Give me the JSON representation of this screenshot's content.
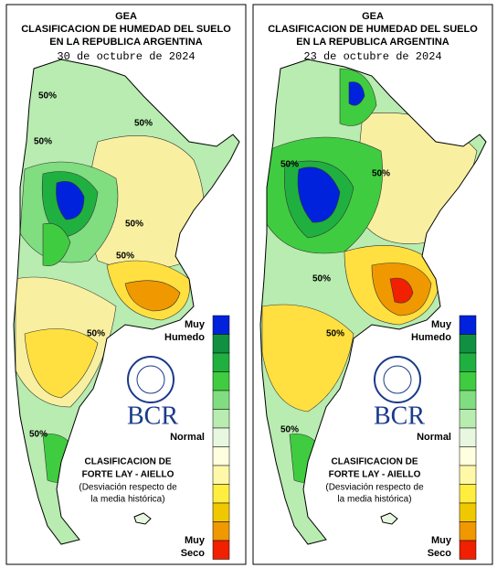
{
  "panels": [
    {
      "org": "GEA",
      "title_line1": "CLASIFICACION DE HUMEDAD DEL SUELO",
      "title_line2": "EN LA REPUBLICA ARGENTINA",
      "date": "30 de octubre de 2024",
      "contour_labels": [
        "50%",
        "50%",
        "50%",
        "50%",
        "50%",
        "50%",
        "50%"
      ],
      "legend_top": [
        "Muy",
        "Humedo"
      ],
      "legend_normal": "Normal",
      "legend_bottom": [
        "Muy",
        "Seco"
      ],
      "logo": "BCR",
      "classification": [
        "CLASIFICACION DE",
        "FORTE LAY - AIELLO"
      ],
      "note": [
        "(Desviación respecto de",
        "la media histórica)"
      ]
    },
    {
      "org": "GEA",
      "title_line1": "CLASIFICACION DE HUMEDAD DEL SUELO",
      "title_line2": "EN LA REPUBLICA ARGENTINA",
      "date": "23 de octubre de 2024",
      "contour_labels": [
        "50%",
        "50%",
        "50%",
        "50%",
        "50%"
      ],
      "legend_top": [
        "Muy",
        "Humedo"
      ],
      "legend_normal": "Normal",
      "legend_bottom": [
        "Muy",
        "Seco"
      ],
      "logo": "BCR",
      "classification": [
        "CLASIFICACION DE",
        "FORTE LAY - AIELLO"
      ],
      "note": [
        "(Desviación respecto de",
        "la media histórica)"
      ]
    }
  ],
  "legend_colors": [
    "#0022dd",
    "#109040",
    "#20b040",
    "#40cc40",
    "#80dd80",
    "#b8ecb0",
    "#e8f8e0",
    "#ffffe0",
    "#fff8a8",
    "#ffee40",
    "#f0c800",
    "#f09800",
    "#f02000"
  ]
}
